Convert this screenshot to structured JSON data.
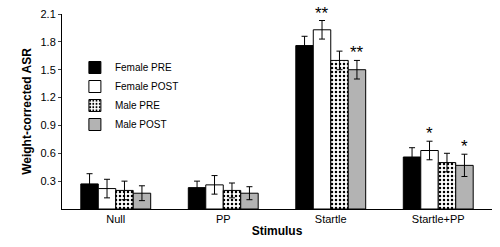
{
  "chart_data": {
    "type": "bar",
    "x_label": "Stimulus",
    "y_label": "Weight-corrected ASR",
    "categories": [
      "Null",
      "PP",
      "Startle",
      "Startle+PP"
    ],
    "series": [
      {
        "name": "Female PRE",
        "color": "#000000",
        "values": [
          0.27,
          0.23,
          1.76,
          0.56
        ],
        "errors": [
          0.11,
          0.07,
          0.1,
          0.1
        ]
      },
      {
        "name": "Female POST",
        "color": "#ffffff",
        "values": [
          0.22,
          0.26,
          1.93,
          0.63
        ],
        "errors": [
          0.1,
          0.1,
          0.1,
          0.1
        ]
      },
      {
        "name": "Male PRE",
        "color": "#ffffff",
        "marker": "dots",
        "values": [
          0.2,
          0.2,
          1.6,
          0.5
        ],
        "errors": [
          0.1,
          0.08,
          0.1,
          0.1
        ]
      },
      {
        "name": "Male POST",
        "color": "#b3b3b3",
        "values": [
          0.17,
          0.17,
          1.5,
          0.47
        ],
        "errors": [
          0.08,
          0.07,
          0.1,
          0.12
        ]
      }
    ],
    "ylim": [
      0,
      2.1
    ],
    "yticks": [
      0.3,
      0.6,
      0.9,
      1.2,
      1.5,
      1.8,
      2.1
    ],
    "grid": false,
    "legend": "top left",
    "annotations": [
      {
        "text": "**",
        "category": "Startle",
        "series": "Female POST"
      },
      {
        "text": "**",
        "category": "Startle",
        "series": "Male POST"
      },
      {
        "text": "*",
        "category": "Startle+PP",
        "series": "Female POST"
      },
      {
        "text": "*",
        "category": "Startle+PP",
        "series": "Male POST"
      }
    ]
  }
}
